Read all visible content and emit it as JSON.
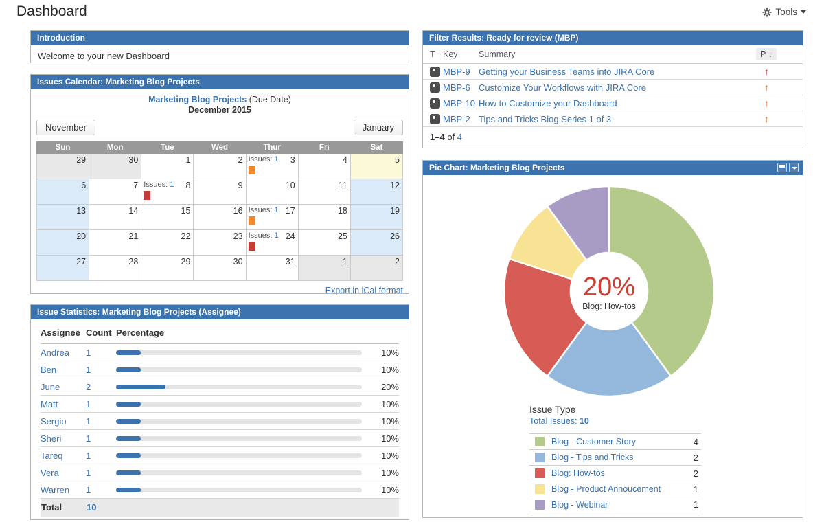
{
  "page": {
    "title": "Dashboard",
    "tools_label": "Tools"
  },
  "intro": {
    "title": "Introduction",
    "body": "Welcome to your new Dashboard"
  },
  "calendar": {
    "title": "Issues Calendar: Marketing Blog Projects",
    "project_link": "Marketing Blog Projects",
    "mode_suffix": "(Due Date)",
    "month_label": "December 2015",
    "prev_month": "November",
    "next_month": "January",
    "issues_label": "Issues:",
    "export_link": "Export in iCal format",
    "day_headers": [
      "Sun",
      "Mon",
      "Tue",
      "Wed",
      "Thur",
      "Fri",
      "Sat"
    ],
    "weeks": [
      [
        {
          "d": "29",
          "t": "out"
        },
        {
          "d": "30",
          "t": "out"
        },
        {
          "d": "1"
        },
        {
          "d": "2"
        },
        {
          "d": "3",
          "issues": "1",
          "m": "orange"
        },
        {
          "d": "4"
        },
        {
          "d": "5",
          "t": "today"
        }
      ],
      [
        {
          "d": "6",
          "t": "weekend"
        },
        {
          "d": "7"
        },
        {
          "d": "8",
          "issues": "1",
          "m": "red"
        },
        {
          "d": "9"
        },
        {
          "d": "10"
        },
        {
          "d": "11"
        },
        {
          "d": "12",
          "t": "weekend"
        }
      ],
      [
        {
          "d": "13",
          "t": "weekend"
        },
        {
          "d": "14"
        },
        {
          "d": "15"
        },
        {
          "d": "16"
        },
        {
          "d": "17",
          "issues": "1",
          "m": "orange"
        },
        {
          "d": "18"
        },
        {
          "d": "19",
          "t": "weekend"
        }
      ],
      [
        {
          "d": "20",
          "t": "weekend"
        },
        {
          "d": "21"
        },
        {
          "d": "22"
        },
        {
          "d": "23"
        },
        {
          "d": "24",
          "issues": "1",
          "m": "red"
        },
        {
          "d": "25"
        },
        {
          "d": "26",
          "t": "weekend"
        }
      ],
      [
        {
          "d": "27",
          "t": "weekend"
        },
        {
          "d": "28"
        },
        {
          "d": "29"
        },
        {
          "d": "30"
        },
        {
          "d": "31"
        },
        {
          "d": "1",
          "t": "out"
        },
        {
          "d": "2",
          "t": "out"
        }
      ]
    ]
  },
  "stats": {
    "title": "Issue Statistics: Marketing Blog Projects (Assignee)",
    "columns": [
      "Assignee",
      "Count",
      "Percentage"
    ],
    "rows": [
      {
        "name": "Andrea",
        "count": "1",
        "pct": 10
      },
      {
        "name": "Ben",
        "count": "1",
        "pct": 10
      },
      {
        "name": "June",
        "count": "2",
        "pct": 20
      },
      {
        "name": "Matt",
        "count": "1",
        "pct": 10
      },
      {
        "name": "Sergio",
        "count": "1",
        "pct": 10
      },
      {
        "name": "Sheri",
        "count": "1",
        "pct": 10
      },
      {
        "name": "Tareq",
        "count": "1",
        "pct": 10
      },
      {
        "name": "Vera",
        "count": "1",
        "pct": 10
      },
      {
        "name": "Warren",
        "count": "1",
        "pct": 10
      }
    ],
    "total_label": "Total",
    "total_count": "10"
  },
  "filter": {
    "title": "Filter Results: Ready for review (MBP)",
    "columns": {
      "type": "T",
      "key": "Key",
      "summary": "Summary",
      "priority": "P"
    },
    "rows": [
      {
        "key": "MBP-9",
        "summary": "Getting your Business Teams into JIRA Core",
        "priority_color": "#d0342c"
      },
      {
        "key": "MBP-6",
        "summary": "Customize Your Workflows with JIRA Core",
        "priority_color": "#ea7025"
      },
      {
        "key": "MBP-10",
        "summary": "How to Customize your Dashboard",
        "priority_color": "#ea7025"
      },
      {
        "key": "MBP-2",
        "summary": "Tips and Tricks Blog Series 1 of 3",
        "priority_color": "#ea7025"
      }
    ],
    "pagination": {
      "range": "1–4",
      "of_label": "of",
      "total": "4"
    }
  },
  "pie_panel": {
    "title": "Pie Chart: Marketing Blog Projects",
    "legend_title": "Issue Type",
    "total_label": "Total Issues:",
    "total_value": "10"
  },
  "chart_data": {
    "type": "pie",
    "title": "Pie Chart: Marketing Blog Projects",
    "donut": true,
    "start_angle_deg": 0,
    "direction": "clockwise",
    "total": 10,
    "slices": [
      {
        "label": "Blog - Customer Story",
        "value": 4,
        "color": "#b4ca8b"
      },
      {
        "label": "Blog - Tips and Tricks",
        "value": 2,
        "color": "#93b8dc"
      },
      {
        "label": "Blog: How-tos",
        "value": 2,
        "color": "#d65c55"
      },
      {
        "label": "Blog - Product Annoucement",
        "value": 1,
        "color": "#f8e294"
      },
      {
        "label": "Blog - Webinar",
        "value": 1,
        "color": "#a89cc4"
      }
    ],
    "center_text": {
      "value": "20%",
      "label": "Blog: How-tos"
    }
  },
  "colors": {
    "header_blue": "#3b73af",
    "link_blue": "#3b73af",
    "bar_blue": "#3b73af",
    "marker_orange": "#f0882f",
    "marker_red": "#c53b36",
    "center_value_red": "#ce3e33"
  }
}
